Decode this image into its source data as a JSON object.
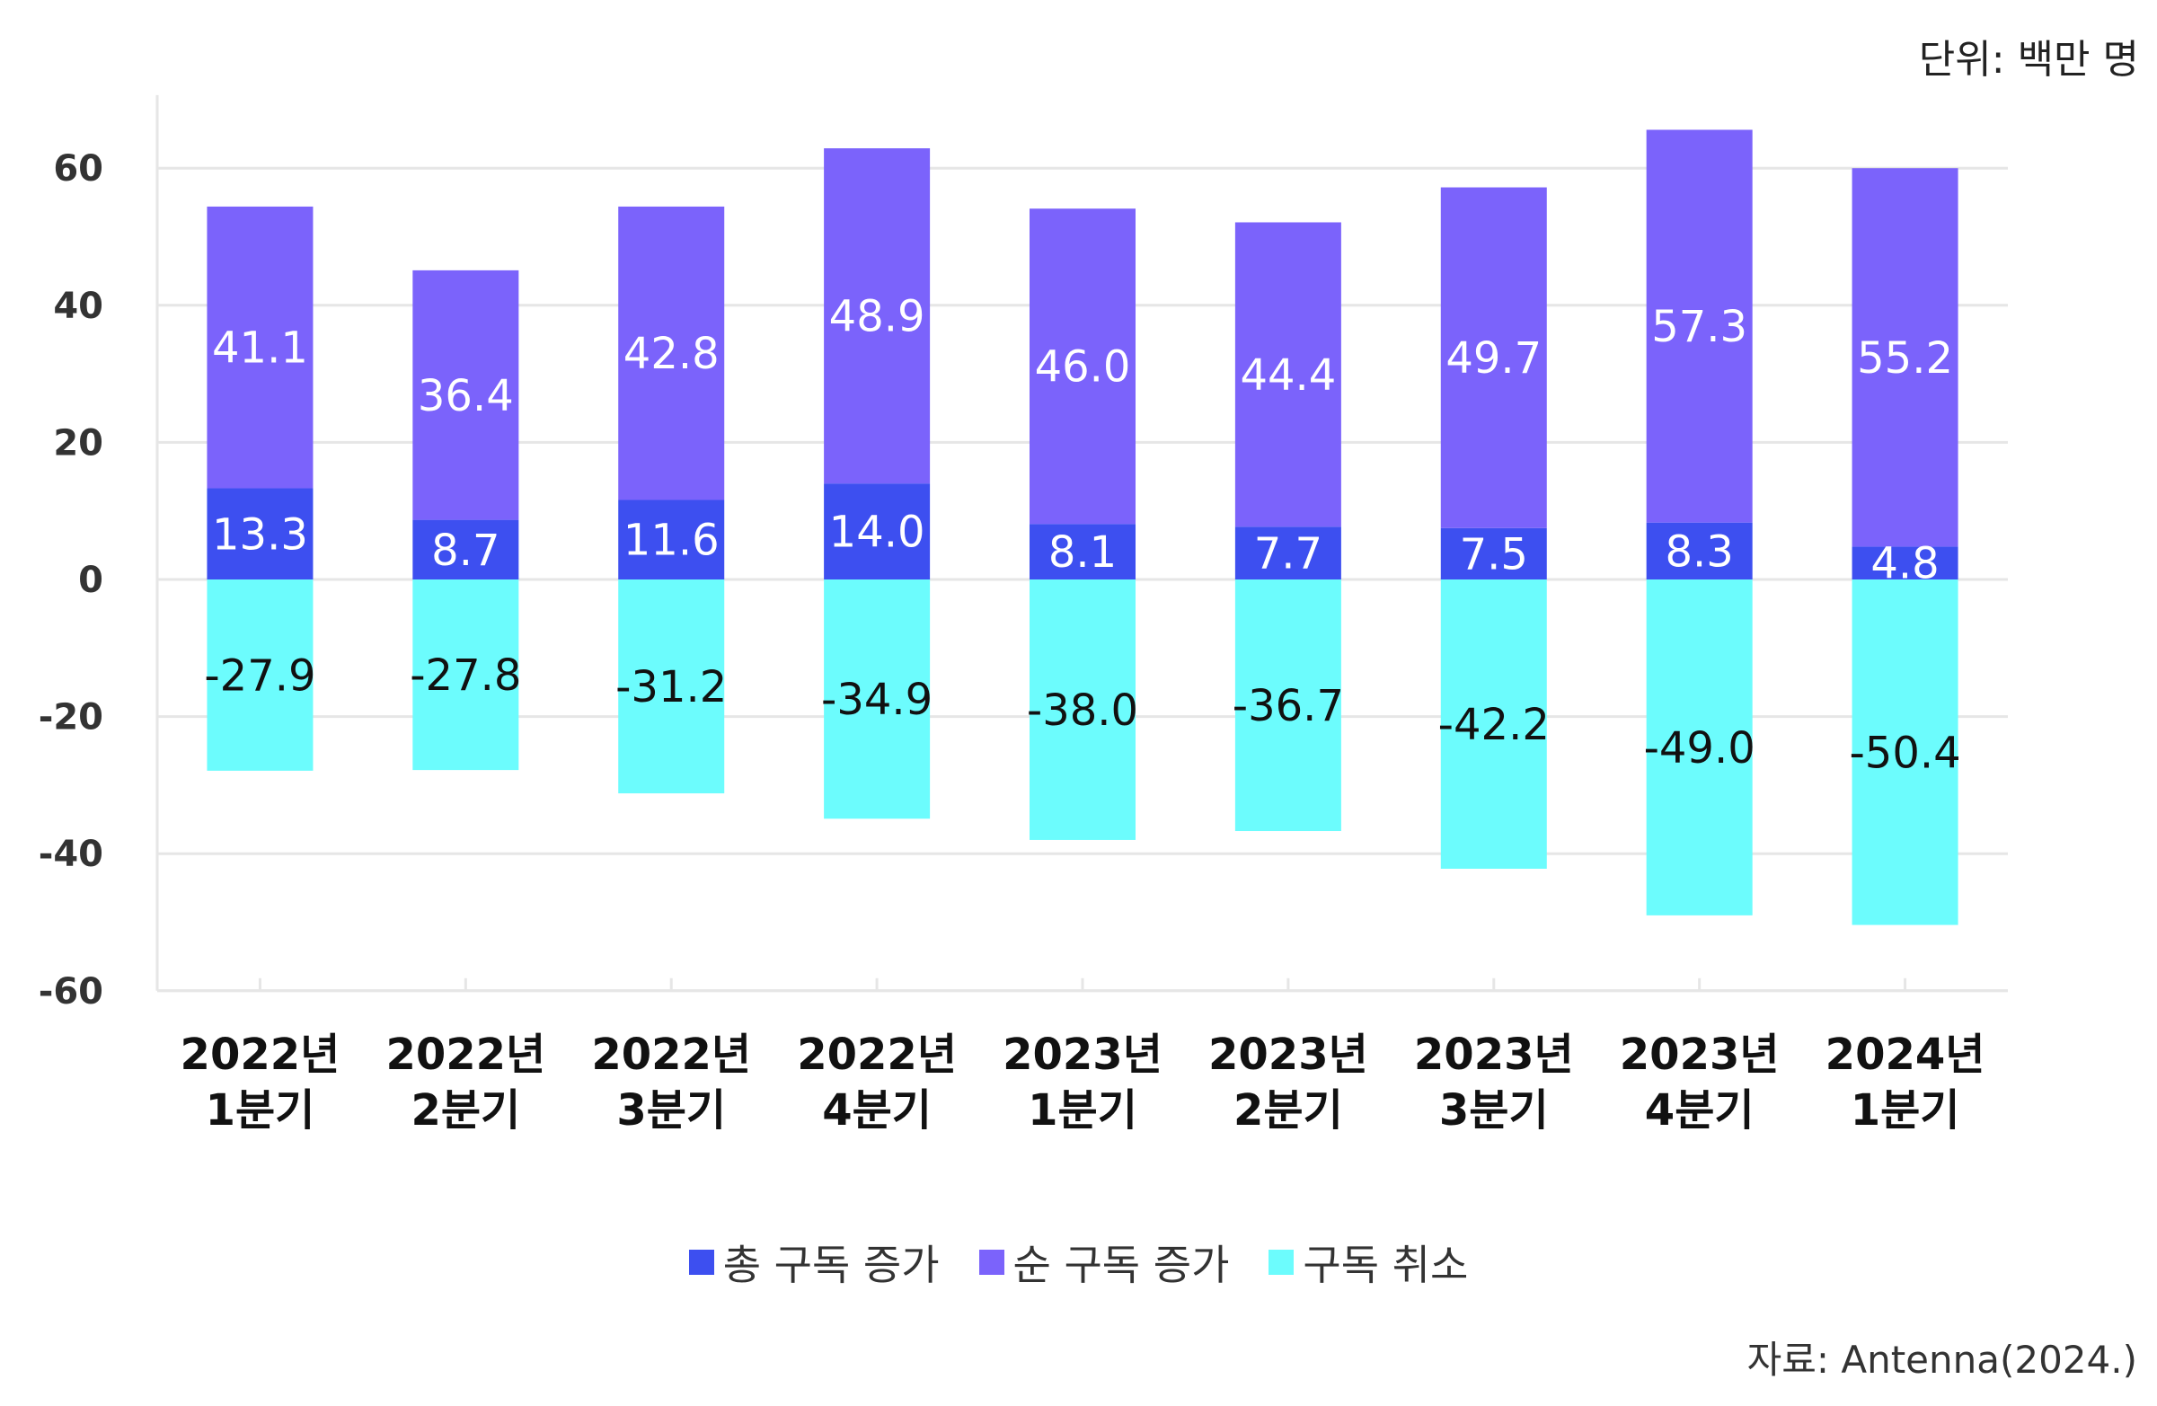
{
  "unit_label": "단위: 백만 명",
  "source_label": "자료: Antenna(2024.)",
  "colors": {
    "gross_adds": "#3d4ff0",
    "net_adds": "#7b63fb",
    "cancellations": "#6cfcfd",
    "grid": "#e6e6e6",
    "axis_text": "#333333"
  },
  "legend": [
    {
      "label": "총 구독 증가",
      "color_key": "gross_adds"
    },
    {
      "label": "순 구독 증가",
      "color_key": "net_adds"
    },
    {
      "label": "구독 취소",
      "color_key": "cancellations"
    }
  ],
  "chart_data": {
    "type": "bar",
    "stacked": true,
    "categories": [
      [
        "2022년",
        "1분기"
      ],
      [
        "2022년",
        "2분기"
      ],
      [
        "2022년",
        "3분기"
      ],
      [
        "2022년",
        "4분기"
      ],
      [
        "2023년",
        "1분기"
      ],
      [
        "2023년",
        "2분기"
      ],
      [
        "2023년",
        "3분기"
      ],
      [
        "2023년",
        "4분기"
      ],
      [
        "2024년",
        "1분기"
      ]
    ],
    "series": [
      {
        "name": "총 구독 증가",
        "color_key": "gross_adds",
        "values": [
          13.3,
          8.7,
          11.6,
          14.0,
          8.1,
          7.7,
          7.5,
          8.3,
          4.8
        ],
        "labels": [
          "13.3",
          "8.7",
          "11.6",
          "14.0",
          "8.1",
          "7.7",
          "7.5",
          "8.3",
          "4.8"
        ]
      },
      {
        "name": "순 구독 증가",
        "color_key": "net_adds",
        "values": [
          41.1,
          36.4,
          42.8,
          48.9,
          46.0,
          44.4,
          49.7,
          57.3,
          55.2
        ],
        "labels": [
          "41.1",
          "36.4",
          "42.8",
          "48.9",
          "46.0",
          "44.4",
          "49.7",
          "57.3",
          "55.2"
        ]
      },
      {
        "name": "구독 취소",
        "color_key": "cancellations",
        "values": [
          -27.9,
          -27.8,
          -31.2,
          -34.9,
          -38.0,
          -36.7,
          -42.2,
          -49.0,
          -50.4
        ],
        "labels": [
          "-27.9",
          "-27.8",
          "-31.2",
          "-34.9",
          "-38.0",
          "-36.7",
          "-42.2",
          "-49.0",
          "-50.4"
        ]
      }
    ],
    "yticks": [
      "60",
      "40",
      "20",
      "0",
      "-20",
      "-40",
      "-60"
    ],
    "ytick_values": [
      60,
      40,
      20,
      0,
      -20,
      -40,
      -60
    ],
    "ylim": [
      -60,
      70
    ],
    "grid": true,
    "legend_position": "bottom"
  }
}
